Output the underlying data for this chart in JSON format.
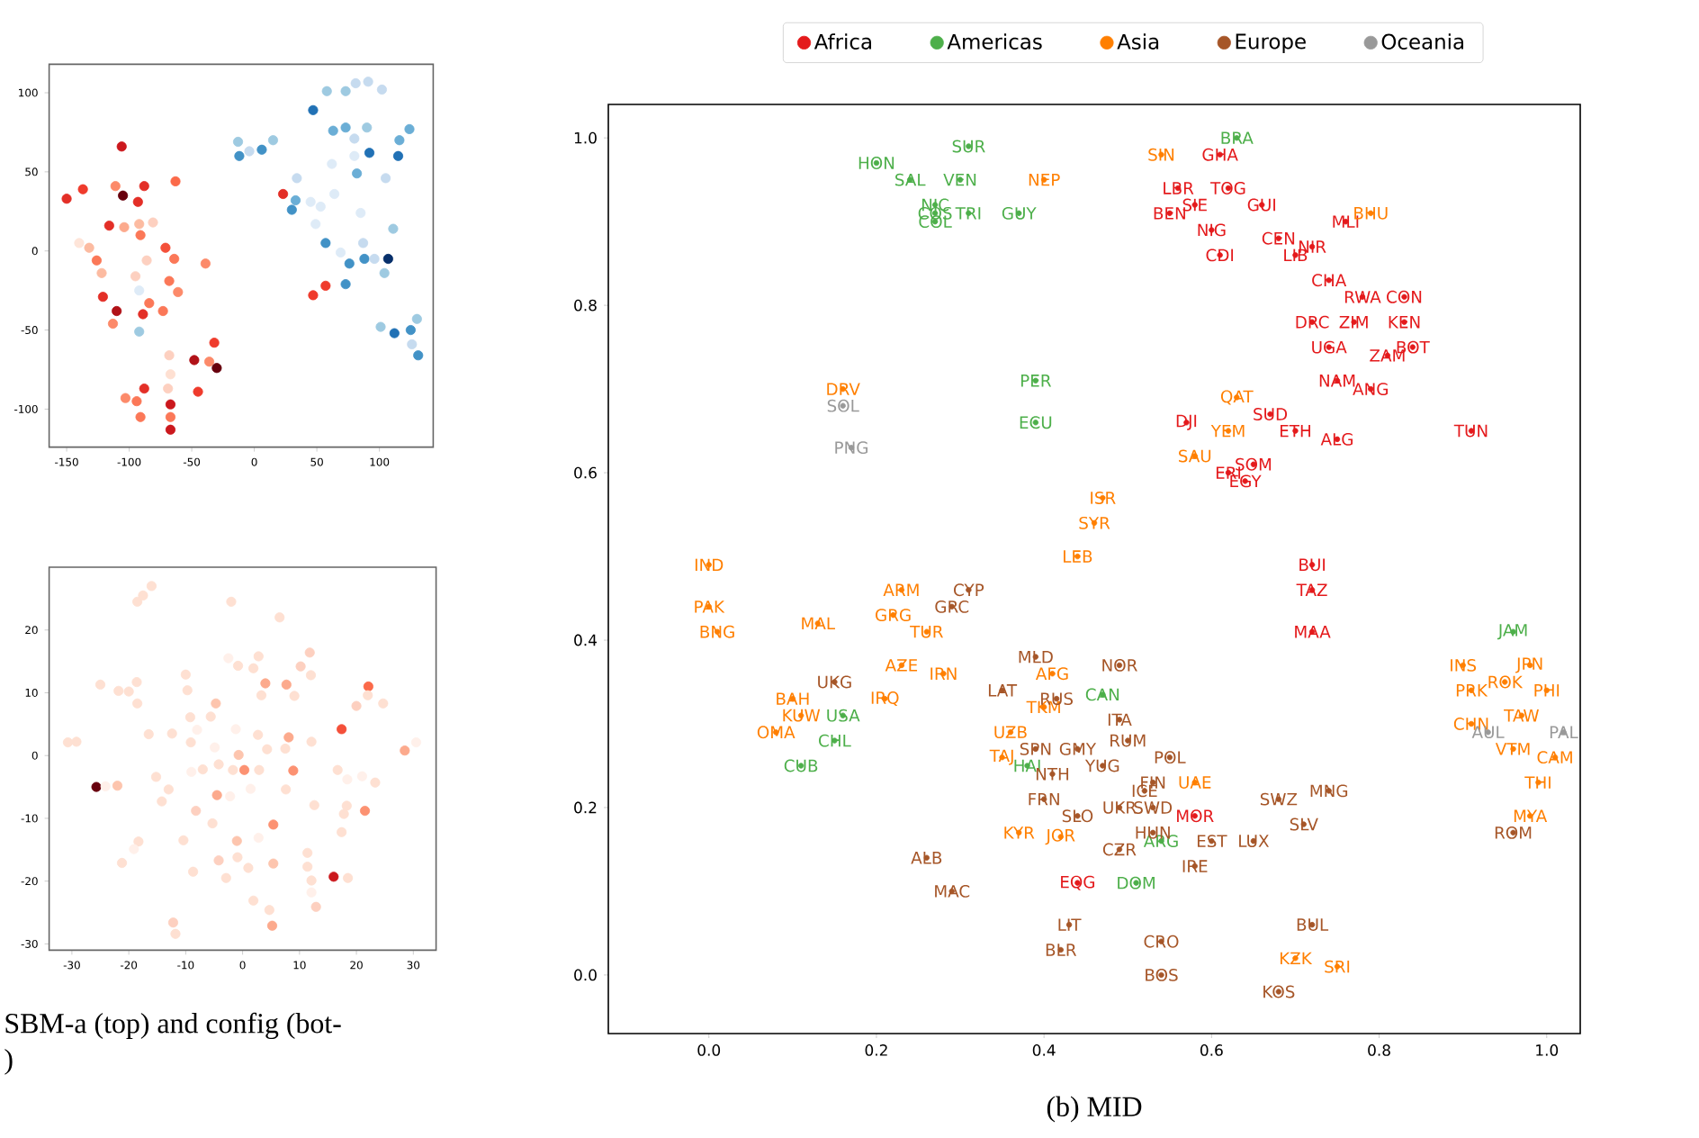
{
  "chart_data": [
    {
      "type": "scatter",
      "xlim": [
        -164,
        143
      ],
      "ylim": [
        -124,
        118
      ],
      "xticks": [
        -150,
        -100,
        -50,
        0,
        50,
        100
      ],
      "yticks": [
        -100,
        -50,
        0,
        50,
        100
      ],
      "marker": "circle",
      "x": [
        -150,
        -137,
        -106,
        -111,
        -105,
        -88,
        -93,
        -63,
        -116,
        -104,
        -92,
        -81,
        -140,
        -132,
        -126,
        -122,
        -91,
        -71,
        -64,
        -86,
        -95,
        -92,
        -68,
        -61,
        -121,
        -110,
        -113,
        -89,
        -84,
        -73,
        -92,
        -39,
        -32,
        -48,
        -36,
        -30,
        -68,
        -67,
        -69,
        -88,
        -103,
        -94,
        -91,
        -67,
        -45,
        -67,
        -67,
        23,
        47,
        57,
        -13,
        -12,
        -4,
        6,
        15,
        47,
        58,
        73,
        81,
        91,
        102,
        63,
        73,
        90,
        80,
        124,
        116,
        92,
        115,
        80,
        62,
        82,
        105,
        34,
        33,
        30,
        45,
        53,
        64,
        49,
        85,
        111,
        57,
        69,
        87,
        76,
        88,
        96,
        107,
        104,
        73,
        101,
        112,
        125,
        130,
        126,
        131
      ],
      "values": [
        33,
        39,
        66,
        41,
        35,
        41,
        31,
        44,
        16,
        15,
        17,
        18,
        5,
        2,
        -6,
        -14,
        10,
        2,
        -5,
        -6,
        -16,
        -25,
        -19,
        -26,
        -29,
        -38,
        -46,
        -40,
        -33,
        -38,
        -51,
        -8,
        -58,
        -69,
        -70,
        -74,
        -66,
        -78,
        -87,
        -87,
        -93,
        -95,
        -105,
        -97,
        -89,
        -105,
        -113,
        36,
        -28,
        -22,
        69,
        60,
        63,
        64,
        70,
        89,
        101,
        101,
        106,
        107,
        102,
        76,
        78,
        78,
        71,
        77,
        70,
        62,
        60,
        60,
        55,
        49,
        46,
        46,
        32,
        26,
        31,
        28,
        36,
        17,
        24,
        14,
        5,
        -1,
        5,
        -8,
        -5,
        -5,
        -5,
        -14,
        -21,
        -48,
        -52,
        -50,
        -43,
        -59,
        -66
      ],
      "colors": [
        "#e32f27",
        "#ef3b2c",
        "#cb181d",
        "#fc8a6a",
        "#67000d",
        "#e32f27",
        "#e32f27",
        "#fb6a4a",
        "#e32f27",
        "#fcaa8d",
        "#fcbba1",
        "#fdd0c0",
        "#fee5d9",
        "#fcbba1",
        "#fb7858",
        "#fcbba1",
        "#fb7858",
        "#f4503a",
        "#fb7858",
        "#fdd0c0",
        "#fdd0c0",
        "#deebf7",
        "#fb7858",
        "#fc8a6a",
        "#e32f27",
        "#b11218",
        "#fc8a6a",
        "#e32f27",
        "#fb7858",
        "#fb7858",
        "#9ecae1",
        "#fc8a6a",
        "#ef3b2c",
        "#b11218",
        "#fc8a6a",
        "#67000d",
        "#fdd0c0",
        "#fee0d2",
        "#fdd0c0",
        "#e32f27",
        "#fc8a6a",
        "#fb7858",
        "#fb7858",
        "#cb181d",
        "#ef3b2c",
        "#fb7858",
        "#cb181d",
        "#e32f27",
        "#ef3b2c",
        "#ef3b2c",
        "#9ecae1",
        "#4292c6",
        "#c6dbef",
        "#4292c6",
        "#9ecae1",
        "#2171b5",
        "#9ecae1",
        "#9ecae1",
        "#c6dbef",
        "#c6dbef",
        "#c6dbef",
        "#6baed6",
        "#6baed6",
        "#9ecae1",
        "#c6dbef",
        "#6baed6",
        "#6baed6",
        "#2171b5",
        "#2171b5",
        "#deebf7",
        "#deebf7",
        "#6baed6",
        "#c6dbef",
        "#c6dbef",
        "#6baed6",
        "#4292c6",
        "#deebf7",
        "#deebf7",
        "#deebf7",
        "#deebf7",
        "#deebf7",
        "#9ecae1",
        "#4292c6",
        "#deebf7",
        "#c6dbef",
        "#4292c6",
        "#4292c6",
        "#c6dbef",
        "#08306b",
        "#9ecae1",
        "#4292c6",
        "#9ecae1",
        "#2171b5",
        "#4292c6",
        "#9ecae1",
        "#c6dbef",
        "#4292c6"
      ]
    },
    {
      "type": "scatter",
      "xlim": [
        -34,
        34
      ],
      "ylim": [
        -31,
        30
      ],
      "xticks": [
        -30,
        -20,
        -10,
        0,
        10,
        20,
        30
      ],
      "yticks": [
        -30,
        -20,
        -10,
        0,
        10,
        20
      ],
      "marker": "circle",
      "x": [
        -16,
        -17.5,
        -18.5,
        -2,
        6.5,
        -2.5,
        -0.8,
        2.8,
        1.9,
        10.2,
        11.8,
        12,
        -25,
        -21.8,
        -20,
        -18.6,
        -18.5,
        -10,
        -9.7,
        4,
        7.7,
        3.3,
        9.1,
        22.1,
        22,
        20,
        24.7,
        -9.2,
        -5.6,
        -4.7,
        -16.5,
        -12.4,
        -8,
        -1.2,
        2.7,
        8.1,
        17.4,
        -30.7,
        -29.2,
        -9.1,
        -4.9,
        4.3,
        7.5,
        12.1,
        28.5,
        30.5,
        -0.7,
        0.3,
        2.9,
        -1.7,
        -7,
        -4.2,
        -9,
        8.9,
        16.7,
        18.4,
        21,
        23.3,
        -25.7,
        -24.1,
        -22,
        -15.2,
        -13,
        -14.2,
        -4.5,
        -2.2,
        1.4,
        7.6,
        12.6,
        18.3,
        17.8,
        21.5,
        -8.2,
        -5.3,
        5.4,
        17.4,
        -18.3,
        -19.1,
        -10.4,
        -1,
        2.8,
        -21.2,
        -8.7,
        -4.2,
        -0.9,
        1,
        5.4,
        11.4,
        11.4,
        -2.9,
        12.1,
        16,
        18.5,
        12.1,
        1.9,
        4.7,
        12.9,
        5.2,
        -12.2,
        -11.8
      ],
      "values": [
        27,
        25.5,
        24.5,
        24.5,
        22,
        15.5,
        14.3,
        15.8,
        13.9,
        14.2,
        16.4,
        12.8,
        11.3,
        10.3,
        10.2,
        11.7,
        8.3,
        12.9,
        10.4,
        11.5,
        11.3,
        9.6,
        9.5,
        11,
        9.6,
        7.9,
        8.3,
        6.1,
        6.2,
        8.3,
        3.4,
        3.5,
        4.1,
        4.2,
        3.3,
        2.9,
        4.2,
        2.1,
        2.2,
        2.1,
        1.3,
        1,
        1.1,
        2.2,
        0.8,
        2.1,
        0.1,
        -2.3,
        -2.3,
        -2.3,
        -2.2,
        -1.4,
        -2.6,
        -2.4,
        -2.3,
        -3.8,
        -3.3,
        -4.3,
        -5,
        -4.9,
        -4.8,
        -3.4,
        -5.4,
        -7.3,
        -6.3,
        -6.5,
        -5.3,
        -5.4,
        -7.9,
        -8,
        -9.3,
        -8.8,
        -8.8,
        -10.8,
        -11,
        -12.2,
        -13.7,
        -14.9,
        -13.5,
        -13.6,
        -13.1,
        -17.1,
        -18.5,
        -16.7,
        -16.2,
        -17.9,
        -17.2,
        -15.5,
        -17.7,
        -19.5,
        -19.9,
        -19.3,
        -19.5,
        -21.8,
        -23.1,
        -24.6,
        -24.1,
        -27.1,
        -26.6,
        -28.4
      ],
      "colors": [
        "#fee0d2",
        "#fee0d2",
        "#fee0d2",
        "#fee0d2",
        "#fee0d2",
        "#fff0ea",
        "#fee0d2",
        "#fee0d2",
        "#fee0d2",
        "#fdd0c0",
        "#fdd0c0",
        "#fee0d2",
        "#fee0d2",
        "#fee0d2",
        "#fee0d2",
        "#fee0d2",
        "#fee0d2",
        "#fee0d2",
        "#fee0d2",
        "#fcaa8d",
        "#fcaa8d",
        "#fee0d2",
        "#fee0d2",
        "#fb6a4a",
        "#fee0d2",
        "#fdd0c0",
        "#fee0d2",
        "#fee0d2",
        "#fee0d2",
        "#fdc5ae",
        "#fee0d2",
        "#fee0d2",
        "#fff0ea",
        "#fff0ea",
        "#fee0d2",
        "#fcaa8d",
        "#f4503a",
        "#fee0d2",
        "#fee0d2",
        "#fee0d2",
        "#fff0ea",
        "#fee0d2",
        "#fee0d2",
        "#fee0d2",
        "#fcaa8d",
        "#fff0ea",
        "#fdc5ae",
        "#fc9272",
        "#fee0d2",
        "#fee0d2",
        "#fee0d2",
        "#fee0d2",
        "#fff0ea",
        "#fc9272",
        "#fee0d2",
        "#fff0ea",
        "#fff0ea",
        "#fee0d2",
        "#67000d",
        "#fff0ea",
        "#fdc5ae",
        "#fee0d2",
        "#fee0d2",
        "#fee0d2",
        "#fcaa8d",
        "#fff0ea",
        "#fff0ea",
        "#fee0d2",
        "#fee0d2",
        "#fee0d2",
        "#fee0d2",
        "#fc9272",
        "#fdd0c0",
        "#fee0d2",
        "#fc9272",
        "#fee0d2",
        "#fee0d2",
        "#fff0ea",
        "#fee0d2",
        "#fdc5ae",
        "#fff0ea",
        "#fee0d2",
        "#fee0d2",
        "#fdd0c0",
        "#fee0d2",
        "#fee0d2",
        "#fdc5ae",
        "#fee0d2",
        "#fee0d2",
        "#fee0d2",
        "#fee0d2",
        "#cb181d",
        "#fee0d2",
        "#fff0ea",
        "#fee0d2",
        "#fee0d2",
        "#fdd0c0",
        "#fcaa8d",
        "#fdd0c0",
        "#fee0d2"
      ],
      "annotations": [
        "SBM-a (top) and config (bot-",
        ")"
      ]
    },
    {
      "type": "scatter",
      "xlim": [
        -0.12,
        1.04
      ],
      "ylim": [
        -0.07,
        1.04
      ],
      "marker": "circle",
      "legend": "top",
      "annotations": [
        "(b) MID"
      ],
      "xticks": [
        {
          "value": 0,
          "label": "0.0"
        },
        0.2,
        0.4,
        0.6,
        0.8,
        {
          "value": 1,
          "label": "1.0"
        }
      ],
      "yticks": [
        {
          "value": 0,
          "label": "0.0"
        },
        0.2,
        0.4,
        0.6,
        0.8,
        {
          "value": 1,
          "label": "1.0"
        }
      ],
      "series": [
        {
          "name": "Africa",
          "color": "#e41a1c",
          "x": [
            0.61,
            0.56,
            0.62,
            0.58,
            0.55,
            0.66,
            0.76,
            0.6,
            0.68,
            0.72,
            0.7,
            0.61,
            0.74,
            0.78,
            0.83,
            0.72,
            0.77,
            0.83,
            0.74,
            0.84,
            0.81,
            0.75,
            0.79,
            0.57,
            0.67,
            0.7,
            0.75,
            0.91,
            0.65,
            0.62,
            0.64,
            0.72,
            0.72,
            0.72,
            0.44,
            0.58
          ],
          "values": [
            0.98,
            0.94,
            0.94,
            0.92,
            0.91,
            0.92,
            0.9,
            0.89,
            0.88,
            0.87,
            0.86,
            0.86,
            0.83,
            0.81,
            0.81,
            0.78,
            0.78,
            0.78,
            0.75,
            0.75,
            0.74,
            0.71,
            0.7,
            0.66,
            0.67,
            0.65,
            0.64,
            0.65,
            0.61,
            0.6,
            0.59,
            0.49,
            0.46,
            0.41,
            0.11,
            0.19
          ],
          "value_labels": [
            "GHA",
            "LBR",
            "TOG",
            "SIE",
            "BEN",
            "GUI",
            "MLI",
            "NIG",
            "CEN",
            "NIR",
            "LIB",
            "CDI",
            "CHA",
            "RWA",
            "CON",
            "DRC",
            "ZIM",
            "KEN",
            "UGA",
            "BOT",
            "ZAM",
            "NAM",
            "ANG",
            "DJI",
            "SUD",
            "ETH",
            "ALG",
            "TUN",
            "SOM",
            "ERI",
            "EGY",
            "BUI",
            "TAZ",
            "MAA",
            "EQG",
            "MOR"
          ]
        },
        {
          "name": "Americas",
          "color": "#4daf4a",
          "x": [
            0.2,
            0.31,
            0.24,
            0.3,
            0.27,
            0.27,
            0.27,
            0.31,
            0.37,
            0.39,
            0.39,
            0.63,
            0.16,
            0.15,
            0.11,
            0.47,
            0.38,
            0.51,
            0.96,
            0.54
          ],
          "values": [
            0.97,
            0.99,
            0.95,
            0.95,
            0.92,
            0.91,
            0.9,
            0.91,
            0.91,
            0.71,
            0.66,
            1.0,
            0.31,
            0.28,
            0.25,
            0.335,
            0.25,
            0.11,
            0.41,
            0.16
          ],
          "value_labels": [
            "HON",
            "SUR",
            "SAL",
            "VEN",
            "NIC",
            "COS",
            "COL",
            "TRI",
            "GUY",
            "PER",
            "ECU",
            "BRA",
            "USA",
            "CHL",
            "CUB",
            "CAN",
            "HAI",
            "DOM",
            "JAM",
            "ARG"
          ]
        },
        {
          "name": "Asia",
          "color": "#ff7f00",
          "x": [
            0.4,
            0.54,
            0.79,
            0.16,
            0.63,
            0.62,
            0.58,
            0.47,
            0.46,
            0.44,
            0.0,
            0.0,
            0.01,
            0.13,
            0.23,
            0.22,
            0.26,
            0.23,
            0.28,
            0.1,
            0.11,
            0.21,
            0.08,
            0.36,
            0.35,
            0.37,
            0.41,
            0.4,
            0.58,
            0.9,
            0.91,
            0.95,
            0.98,
            1.0,
            0.91,
            0.97,
            0.96,
            1.01,
            0.99,
            0.98,
            0.7,
            0.75,
            0.42
          ],
          "values": [
            0.95,
            0.98,
            0.91,
            0.7,
            0.69,
            0.65,
            0.62,
            0.57,
            0.54,
            0.5,
            0.49,
            0.44,
            0.41,
            0.42,
            0.46,
            0.43,
            0.41,
            0.37,
            0.36,
            0.33,
            0.31,
            0.33,
            0.29,
            0.29,
            0.26,
            0.17,
            0.36,
            0.32,
            0.23,
            0.37,
            0.34,
            0.35,
            0.37,
            0.34,
            0.3,
            0.31,
            0.27,
            0.26,
            0.23,
            0.19,
            0.02,
            0.01,
            0.165
          ],
          "value_labels": [
            "NEP",
            "SIN",
            "BHU",
            "DRV",
            "QAT",
            "YEM",
            "SAU",
            "ISR",
            "SYR",
            "LEB",
            "IND",
            "PAK",
            "BNG",
            "MAL",
            "ARM",
            "GRG",
            "TUR",
            "AZE",
            "IRN",
            "BAH",
            "KUW",
            "IRQ",
            "OMA",
            "UZB",
            "TAJ",
            "KYR",
            "AFG",
            "TKM",
            "UAE",
            "INS",
            "PRK",
            "ROK",
            "JPN",
            "PHI",
            "CHN",
            "TAW",
            "VTM",
            "CAM",
            "THI",
            "MYA",
            "KZK",
            "SRI",
            "JOR"
          ]
        },
        {
          "name": "Europe",
          "color": "#a65628",
          "x": [
            0.29,
            0.31,
            0.15,
            0.39,
            0.35,
            0.415,
            0.49,
            0.49,
            0.5,
            0.39,
            0.44,
            0.55,
            0.47,
            0.41,
            0.4,
            0.53,
            0.52,
            0.49,
            0.53,
            0.44,
            0.53,
            0.49,
            0.6,
            0.65,
            0.58,
            0.68,
            0.74,
            0.71,
            0.96,
            0.26,
            0.29,
            0.43,
            0.42,
            0.54,
            0.54,
            0.72,
            0.68
          ],
          "values": [
            0.44,
            0.46,
            0.35,
            0.38,
            0.34,
            0.33,
            0.37,
            0.305,
            0.28,
            0.27,
            0.27,
            0.26,
            0.25,
            0.24,
            0.21,
            0.23,
            0.22,
            0.2,
            0.2,
            0.19,
            0.17,
            0.15,
            0.16,
            0.16,
            0.13,
            0.21,
            0.22,
            0.18,
            0.17,
            0.14,
            0.1,
            0.06,
            0.03,
            0.04,
            0.0,
            0.06,
            -0.02
          ],
          "value_labels": [
            "GRC",
            "CYP",
            "UKG",
            "MLD",
            "LAT",
            "RUS",
            "NOR",
            "ITA",
            "RUM",
            "SPN",
            "GMY",
            "POL",
            "YUG",
            "NTH",
            "FRN",
            "FIN",
            "ICE",
            "UKR",
            "SWD",
            "SLO",
            "HUN",
            "CZR",
            "EST",
            "LUX",
            "IRE",
            "SWZ",
            "MNG",
            "SLV",
            "ROM",
            "ALB",
            "MAC",
            "LIT",
            "BLR",
            "CRO",
            "BOS",
            "BUL",
            "KOS"
          ]
        },
        {
          "name": "Oceania",
          "color": "#999999",
          "x": [
            0.16,
            0.17,
            0.93,
            1.02
          ],
          "values": [
            0.68,
            0.63,
            0.29,
            0.29
          ],
          "value_labels": [
            "SOL",
            "PNG",
            "AUL",
            "PAL"
          ]
        }
      ]
    }
  ]
}
